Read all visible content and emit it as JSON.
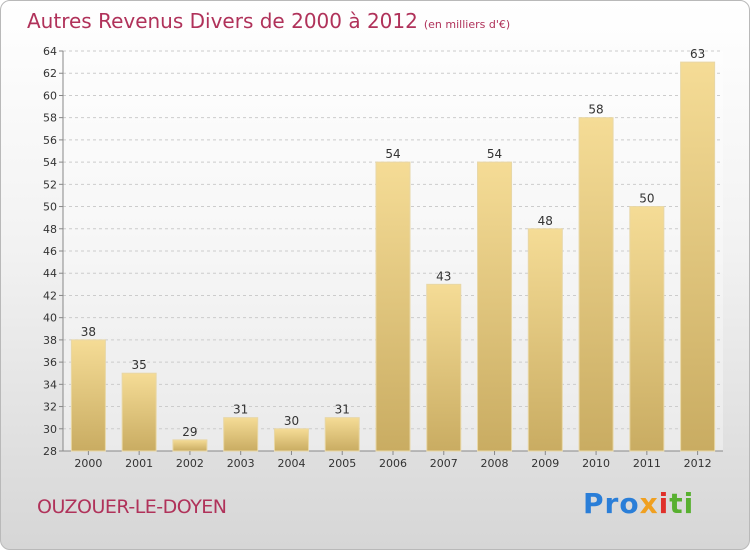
{
  "title": {
    "main": "Autres Revenus Divers de 2000 à 2012",
    "sub": "(en milliers d'€)"
  },
  "commune": "OUZOUER-LE-DOYEN",
  "logo": {
    "text": "Proxiti",
    "parts": [
      "Pro",
      "x",
      "i",
      "ti"
    ]
  },
  "colors": {
    "title": "#b0325a",
    "bar_light": "#f5dc96",
    "bar_dark": "#c9ac62",
    "grid": "#cccccc"
  },
  "chart_data": {
    "type": "bar",
    "categories": [
      "2000",
      "2001",
      "2002",
      "2003",
      "2004",
      "2005",
      "2006",
      "2007",
      "2008",
      "2009",
      "2010",
      "2011",
      "2012"
    ],
    "values": [
      38,
      35,
      29,
      31,
      30,
      31,
      54,
      43,
      54,
      48,
      58,
      50,
      63
    ],
    "ylim": [
      28,
      64
    ],
    "yticks": [
      28,
      30,
      32,
      34,
      36,
      38,
      40,
      42,
      44,
      46,
      48,
      50,
      52,
      54,
      56,
      58,
      60,
      62,
      64
    ],
    "grid": true,
    "data_labels": true,
    "xlabel": "",
    "ylabel": ""
  }
}
